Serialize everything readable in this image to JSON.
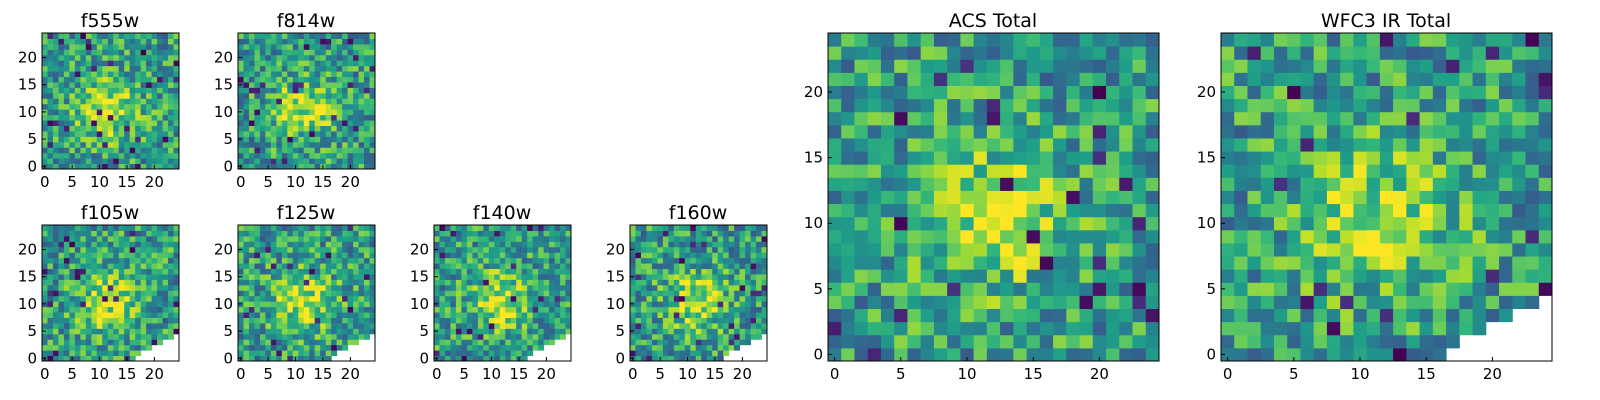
{
  "chart_data": [
    {
      "type": "heatmap",
      "title": "f555w",
      "xticks": [
        0,
        5,
        10,
        15,
        20
      ],
      "yticks": [
        0,
        5,
        10,
        15,
        20
      ],
      "xlim": [
        0,
        24
      ],
      "ylim": [
        0,
        24
      ],
      "colormap": "viridis",
      "mask_corner": false,
      "seed": 11
    },
    {
      "type": "heatmap",
      "title": "f814w",
      "xticks": [
        0,
        5,
        10,
        15,
        20
      ],
      "yticks": [
        0,
        5,
        10,
        15,
        20
      ],
      "xlim": [
        0,
        24
      ],
      "ylim": [
        0,
        24
      ],
      "colormap": "viridis",
      "mask_corner": false,
      "seed": 23
    },
    {
      "type": "heatmap",
      "title": "f105w",
      "xticks": [
        0,
        5,
        10,
        15,
        20
      ],
      "yticks": [
        0,
        5,
        10,
        15,
        20
      ],
      "xlim": [
        0,
        24
      ],
      "ylim": [
        0,
        24
      ],
      "colormap": "viridis",
      "mask_corner": true,
      "seed": 37
    },
    {
      "type": "heatmap",
      "title": "f125w",
      "xticks": [
        0,
        5,
        10,
        15,
        20
      ],
      "yticks": [
        0,
        5,
        10,
        15,
        20
      ],
      "xlim": [
        0,
        24
      ],
      "ylim": [
        0,
        24
      ],
      "colormap": "viridis",
      "mask_corner": true,
      "seed": 41
    },
    {
      "type": "heatmap",
      "title": "f140w",
      "xticks": [
        0,
        5,
        10,
        15,
        20
      ],
      "yticks": [
        0,
        5,
        10,
        15,
        20
      ],
      "xlim": [
        0,
        24
      ],
      "ylim": [
        0,
        24
      ],
      "colormap": "viridis",
      "mask_corner": true,
      "seed": 53
    },
    {
      "type": "heatmap",
      "title": "f160w",
      "xticks": [
        0,
        5,
        10,
        15,
        20
      ],
      "yticks": [
        0,
        5,
        10,
        15,
        20
      ],
      "xlim": [
        0,
        24
      ],
      "ylim": [
        0,
        24
      ],
      "colormap": "viridis",
      "mask_corner": true,
      "seed": 67
    },
    {
      "type": "heatmap",
      "title": "ACS Total",
      "xticks": [
        0,
        5,
        10,
        15,
        20
      ],
      "yticks": [
        0,
        5,
        10,
        15,
        20
      ],
      "xlim": [
        0,
        24
      ],
      "ylim": [
        0,
        24
      ],
      "colormap": "viridis",
      "mask_corner": false,
      "seed": 79
    },
    {
      "type": "heatmap",
      "title": "WFC3 IR Total",
      "xticks": [
        0,
        5,
        10,
        15,
        20
      ],
      "yticks": [
        0,
        5,
        10,
        15,
        20
      ],
      "xlim": [
        0,
        24
      ],
      "ylim": [
        0,
        24
      ],
      "colormap": "viridis",
      "mask_corner": true,
      "seed": 97
    }
  ]
}
